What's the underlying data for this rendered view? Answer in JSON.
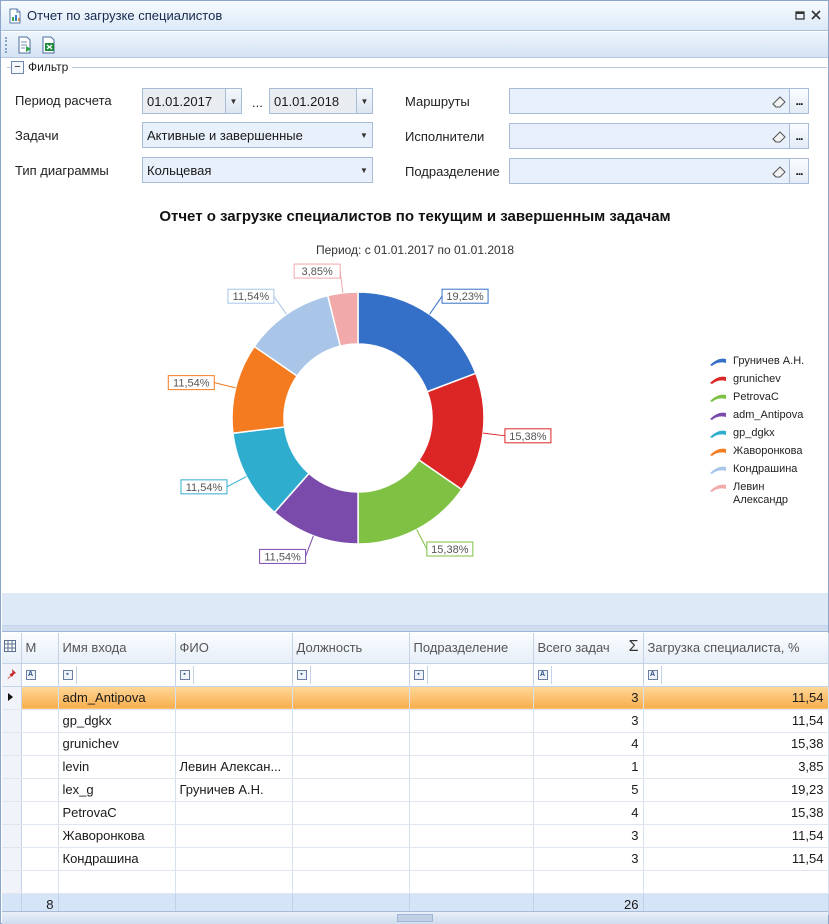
{
  "window": {
    "title": "Отчет по загрузке специалистов"
  },
  "filter": {
    "title": "Фильтр",
    "period_label": "Период расчета",
    "period_from": "01.01.2017",
    "period_sep": "...",
    "period_to": "01.01.2018",
    "tasks_label": "Задачи",
    "tasks_value": "Активные и завершенные",
    "chart_type_label": "Тип диаграммы",
    "chart_type_value": "Кольцевая",
    "routes_label": "Маршруты",
    "executors_label": "Исполнители",
    "department_label": "Подразделение",
    "dots": "..."
  },
  "chart_data": {
    "type": "pie",
    "title": "Отчет о загрузке специалистов по текущим и завершенным задачам",
    "subtitle": "Период: с 01.01.2017 по 01.01.2018",
    "legend_position": "right",
    "slices": [
      {
        "name": "Груничев А.Н.",
        "value": 19.23,
        "label": "19,23%",
        "color": "#3570c8"
      },
      {
        "name": "grunichev",
        "value": 15.38,
        "label": "15,38%",
        "color": "#dc2626"
      },
      {
        "name": "PetrovaC",
        "value": 15.38,
        "label": "15,38%",
        "color": "#7fc243"
      },
      {
        "name": "adm_Antipova",
        "value": 11.54,
        "label": "11,54%",
        "color": "#7a4bab"
      },
      {
        "name": "gp_dgkx",
        "value": 11.54,
        "label": "11,54%",
        "color": "#2fadcf"
      },
      {
        "name": "Жаворонкова",
        "value": 11.54,
        "label": "11,54%",
        "color": "#f47b20"
      },
      {
        "name": "Кондрашина",
        "value": 11.54,
        "label": "11,54%",
        "color": "#a9c6e8"
      },
      {
        "name": "Левин Александр",
        "value": 3.85,
        "label": "3,85%",
        "color": "#f1a9a9"
      }
    ]
  },
  "grid": {
    "columns": [
      "М",
      "Имя входа",
      "ФИО",
      "Должность",
      "Подразделение",
      "Всего задач",
      "Загрузка специалиста, %"
    ],
    "rows": [
      {
        "login": "adm_Antipova",
        "fio": "",
        "tasks": "3",
        "load": "11,54"
      },
      {
        "login": "gp_dgkx",
        "fio": "",
        "tasks": "3",
        "load": "11,54"
      },
      {
        "login": "grunichev",
        "fio": "",
        "tasks": "4",
        "load": "15,38"
      },
      {
        "login": "levin",
        "fio": "Левин Алексан...",
        "tasks": "1",
        "load": "3,85"
      },
      {
        "login": "lex_g",
        "fio": "Груничев А.Н.",
        "tasks": "5",
        "load": "19,23"
      },
      {
        "login": "PetrovaC",
        "fio": "",
        "tasks": "4",
        "load": "15,38"
      },
      {
        "login": "Жаворонкова",
        "fio": "",
        "tasks": "3",
        "load": "11,54"
      },
      {
        "login": "Кондрашина",
        "fio": "",
        "tasks": "3",
        "load": "11,54"
      }
    ],
    "summary": {
      "count": "8",
      "total_tasks": "26"
    },
    "sum_symbol": "Σ"
  }
}
